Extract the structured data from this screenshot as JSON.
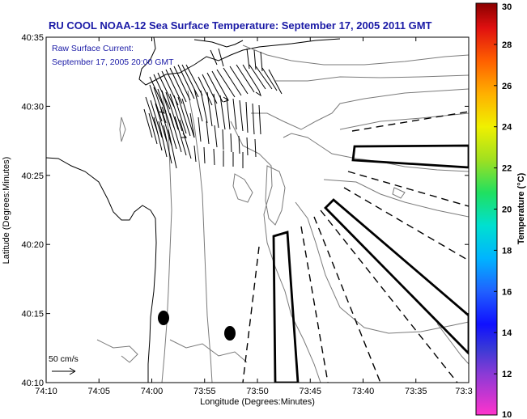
{
  "chart_data": {
    "type": "map",
    "title": "RU COOL  NOAA-12  Sea Surface Temperature:  September 17, 2005 2011 GMT",
    "xlabel": "Longitude (Degrees:Minutes)",
    "ylabel": "Latitude (Degrees:Minutes)",
    "x_ticks": [
      "74:10",
      "74:05",
      "74:00",
      "73:55",
      "73:50",
      "73:45",
      "73:40",
      "73:35",
      "73:3"
    ],
    "y_ticks": [
      "40:10",
      "40:15",
      "40:20",
      "40:25",
      "40:30",
      "40:35"
    ],
    "annotation_lines": [
      "Raw Surface Current:",
      "September 17, 2005 20:00 GMT"
    ],
    "scale_label": "50 cm/s",
    "colorbar": {
      "label": "Temperature (°C)",
      "min": 10,
      "max": 30,
      "ticks": [
        10,
        12,
        14,
        16,
        18,
        20,
        22,
        24,
        26,
        28,
        30
      ]
    }
  },
  "colors": {
    "title": "#1a1aa6",
    "annotation": "#1a1aa6",
    "axes": "#000000",
    "contour": "#7a7a7a"
  }
}
